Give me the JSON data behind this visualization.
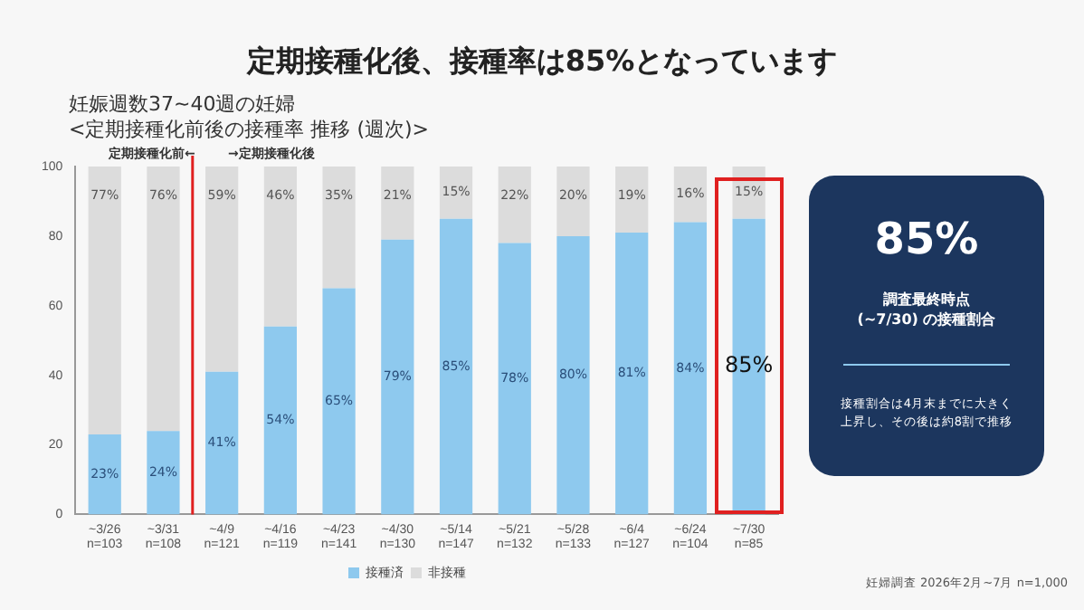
{
  "chart_data": {
    "type": "bar",
    "stacked": true,
    "title": "定期接種化後、接種率は85%となっています",
    "subtitle": "妊娠週数37~40週の妊婦\n<定期接種化前後の接種率 推移 (週次)>",
    "categories": [
      "~3/26\nn=103",
      "~3/31\nn=108",
      "~4/9\nn=121",
      "~4/16\nn=119",
      "~4/23\nn=141",
      "~4/30\nn=130",
      "~5/14\nn=147",
      "~5/21\nn=132",
      "~5/28\nn=133",
      "~6/4\nn=127",
      "~6/24\nn=104",
      "~7/30\nn=85"
    ],
    "series": [
      {
        "name": "接種済",
        "color": "#8ec9ee",
        "values": [
          23,
          24,
          41,
          54,
          65,
          79,
          85,
          78,
          80,
          81,
          84,
          85
        ],
        "value_labels": [
          "23%",
          "24%",
          "41%",
          "54%",
          "65%",
          "79%",
          "85%",
          "78%",
          "80%",
          "81%",
          "84%",
          "85%"
        ]
      },
      {
        "name": "非接種",
        "color": "#dcdcdc",
        "values": [
          77,
          76,
          59,
          46,
          35,
          21,
          15,
          22,
          20,
          19,
          16,
          15
        ],
        "value_labels": [
          "77%",
          "76%",
          "59%",
          "46%",
          "35%",
          "21%",
          "15%",
          "22%",
          "20%",
          "19%",
          "16%",
          "15%"
        ]
      }
    ],
    "ylim": [
      0,
      100
    ],
    "yticks": [
      0,
      20,
      40,
      60,
      80,
      100
    ],
    "grid": false,
    "legend": "bottom",
    "ref_lines": [
      {
        "axis": "x",
        "value": "~4/9\nn=121",
        "color": "#e02020"
      }
    ],
    "annotations": [
      "定期接種化前←",
      "→定期接種化後",
      "85%",
      "調査最終時点\n(~7/30) の接種割合",
      "接種割合は4月末までに大きく上昇し、その後は約8割で推移",
      "妊婦調査 2026年2月~7月 n=1,000"
    ]
  }
}
